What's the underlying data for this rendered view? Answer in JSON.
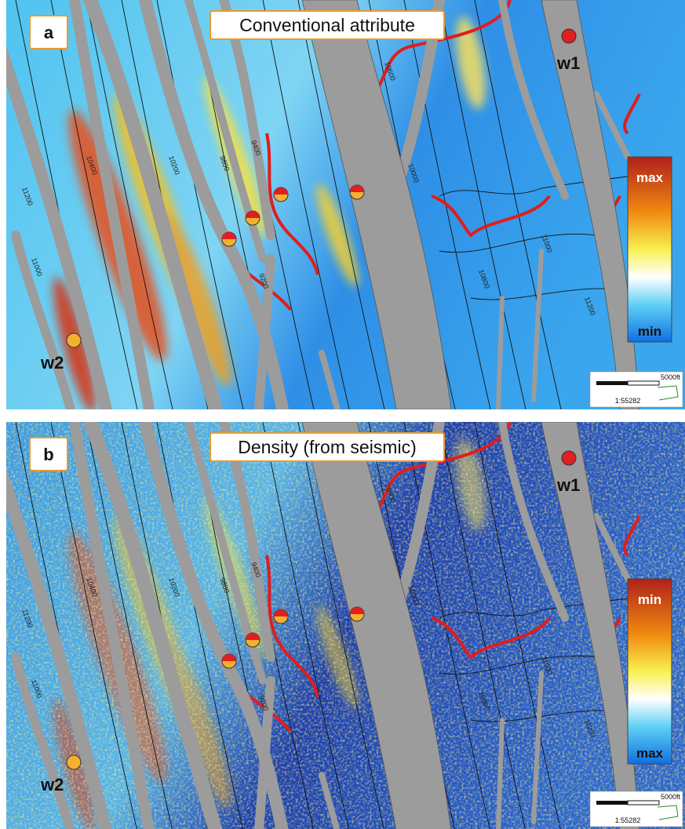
{
  "panels": [
    {
      "label": "a",
      "title": "Conventional attribute",
      "colorbar": {
        "top": "max",
        "bottom": "min"
      },
      "wells": [
        {
          "label": "w1"
        },
        {
          "label": "w2"
        }
      ],
      "scale": {
        "distance": "5000ft",
        "ratio": "1:55282"
      },
      "contour_labels": [
        "11200",
        "11000",
        "10400",
        "10200",
        "9800",
        "9400",
        "9200",
        "10800",
        "11000",
        "11200",
        "10000",
        "10600"
      ]
    },
    {
      "label": "b",
      "title": "Density (from seismic)",
      "colorbar": {
        "top": "min",
        "bottom": "max"
      },
      "wells": [
        {
          "label": "w1"
        },
        {
          "label": "w2"
        }
      ],
      "scale": {
        "distance": "5000ft",
        "ratio": "1:55282"
      },
      "contour_labels": [
        "11200",
        "11000",
        "10400",
        "10200",
        "9800",
        "9400",
        "9200",
        "10800",
        "11000",
        "11200",
        "10000",
        "10600"
      ]
    }
  ]
}
